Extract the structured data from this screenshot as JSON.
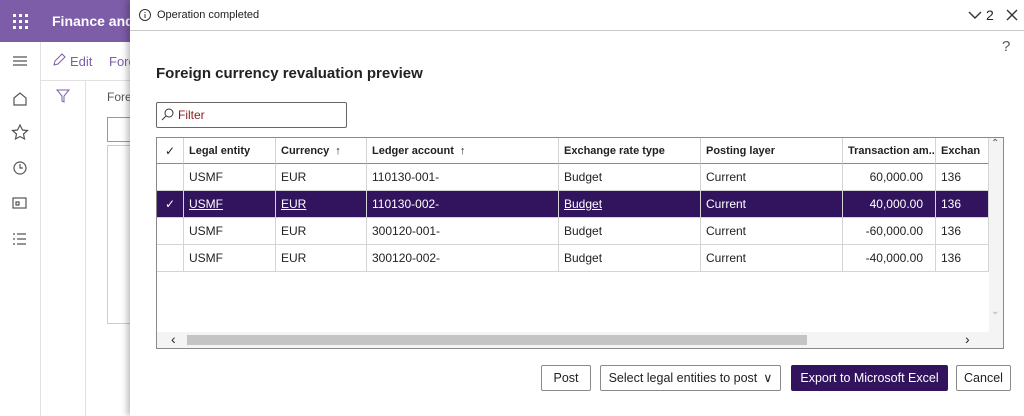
{
  "app": {
    "title": "Finance and",
    "toolbar": [
      "Edit",
      "Fore"
    ],
    "page_label": "Fore"
  },
  "dialog": {
    "message": "Operation completed",
    "count": "2",
    "help": "?",
    "title": "Foreign currency revaluation preview",
    "filter_placeholder": "Filter",
    "grid": {
      "columns": [
        "Legal entity",
        "Currency",
        "Ledger account",
        "Exchange rate type",
        "Posting layer",
        "Transaction am...",
        "Exchan"
      ],
      "rows": [
        [
          "USMF",
          "EUR",
          "110130-001-",
          "Budget",
          "Current",
          "60,000.00",
          "136"
        ],
        [
          "USMF",
          "EUR",
          "110130-002-",
          "Budget",
          "Current",
          "40,000.00",
          "136"
        ],
        [
          "USMF",
          "EUR",
          "300120-001-",
          "Budget",
          "Current",
          "-60,000.00",
          "136"
        ],
        [
          "USMF",
          "EUR",
          "300120-002-",
          "Budget",
          "Current",
          "-40,000.00",
          "136"
        ]
      ],
      "selected_row": 1
    },
    "buttons": [
      "Post",
      "Select legal entities to post",
      "Export to Microsoft Excel",
      "Cancel"
    ]
  }
}
